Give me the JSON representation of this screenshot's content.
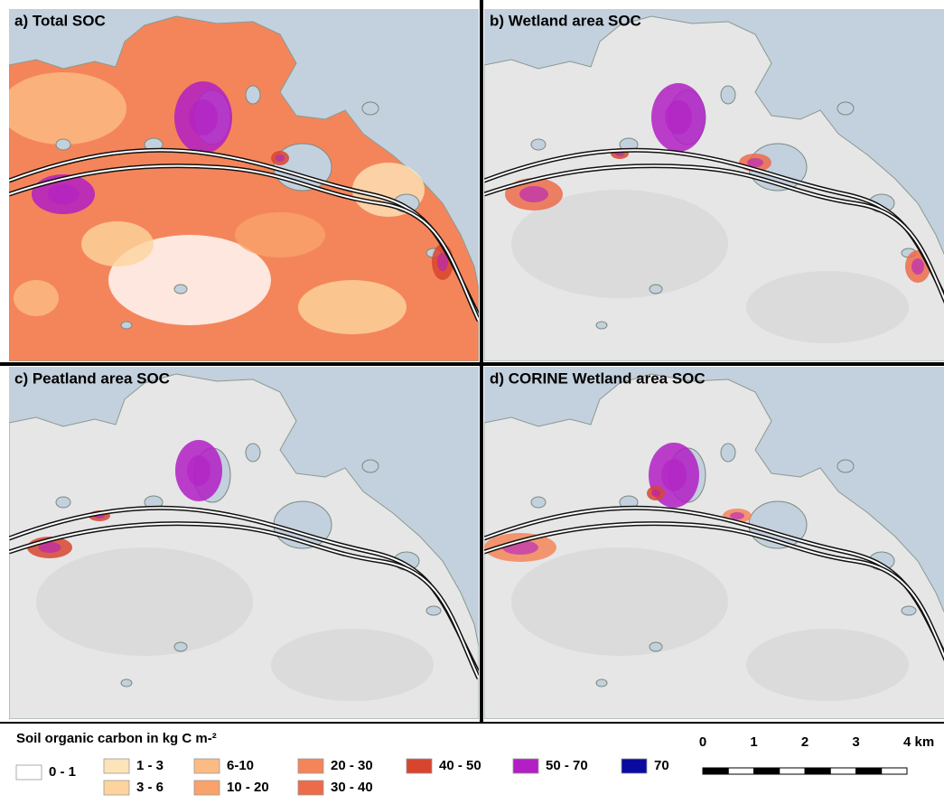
{
  "panels": [
    {
      "label": "a) Total SOC",
      "style": "total"
    },
    {
      "label": "b) Wetland area SOC",
      "style": "wetland"
    },
    {
      "label": "c) Peatland area SOC",
      "style": "peat"
    },
    {
      "label": "d) CORINE Wetland area SOC",
      "style": "corine"
    }
  ],
  "legend": {
    "title": "Soil organic carbon in kg C m-²",
    "items": [
      {
        "label": "0 - 1",
        "color": "#ffffff"
      },
      {
        "label": "1 - 3",
        "color": "#fde3b8"
      },
      {
        "label": "3 - 6",
        "color": "#fdd49e"
      },
      {
        "label": "6-10",
        "color": "#fcbb84"
      },
      {
        "label": "10 - 20",
        "color": "#f9a26a"
      },
      {
        "label": "20 - 30",
        "color": "#f4855a"
      },
      {
        "label": "30 - 40",
        "color": "#ec6b4a"
      },
      {
        "label": "40 - 50",
        "color": "#d7452f"
      },
      {
        "label": "50 - 70",
        "color": "#b21fc4"
      },
      {
        "label": "70",
        "color": "#0a0aa0"
      }
    ]
  },
  "scale_bar": {
    "labels": [
      "0",
      "1",
      "2",
      "3",
      "4 km"
    ]
  }
}
